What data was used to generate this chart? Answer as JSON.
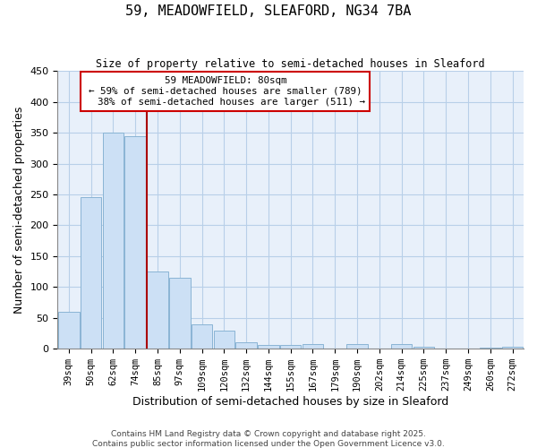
{
  "title": "59, MEADOWFIELD, SLEAFORD, NG34 7BA",
  "subtitle": "Size of property relative to semi-detached houses in Sleaford",
  "xlabel": "Distribution of semi-detached houses by size in Sleaford",
  "ylabel": "Number of semi-detached properties",
  "bar_color": "#cce0f5",
  "bar_edge_color": "#8ab4d4",
  "background_color": "#ffffff",
  "plot_bg_color": "#e8f0fa",
  "grid_color": "#b8cfe8",
  "categories": [
    "39sqm",
    "50sqm",
    "62sqm",
    "74sqm",
    "85sqm",
    "97sqm",
    "109sqm",
    "120sqm",
    "132sqm",
    "144sqm",
    "155sqm",
    "167sqm",
    "179sqm",
    "190sqm",
    "202sqm",
    "214sqm",
    "225sqm",
    "237sqm",
    "249sqm",
    "260sqm",
    "272sqm"
  ],
  "values": [
    60,
    245,
    350,
    345,
    125,
    115,
    40,
    30,
    10,
    6,
    6,
    8,
    0,
    8,
    0,
    8,
    3,
    0,
    0,
    2,
    3
  ],
  "ylim": [
    0,
    450
  ],
  "yticks": [
    0,
    50,
    100,
    150,
    200,
    250,
    300,
    350,
    400,
    450
  ],
  "property_line_idx": 4,
  "property_label": "59 MEADOWFIELD: 80sqm",
  "pct_smaller": 59,
  "n_smaller": 789,
  "pct_larger": 38,
  "n_larger": 511,
  "line_color": "#aa0000",
  "box_edge_color": "#cc0000",
  "box_face_color": "#ffffff",
  "footer1": "Contains HM Land Registry data © Crown copyright and database right 2025.",
  "footer2": "Contains public sector information licensed under the Open Government Licence v3.0."
}
